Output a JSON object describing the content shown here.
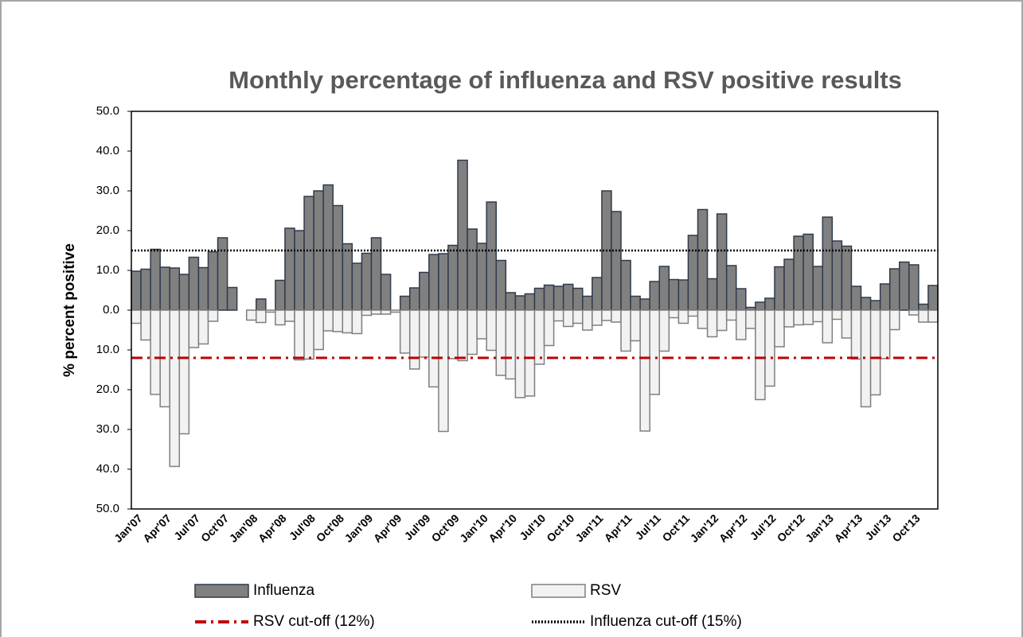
{
  "chart_data": {
    "type": "bar",
    "title": "Monthly percentage of influenza and RSV positive results",
    "y_label": "% percent positive",
    "categories": [
      "Jan'07",
      null,
      null,
      "Apr'07",
      null,
      null,
      "Jul'07",
      null,
      null,
      "Oct'07",
      null,
      null,
      "Jan'08",
      null,
      null,
      "Apr'08",
      null,
      null,
      "Jul'08",
      null,
      null,
      "Oct'08",
      null,
      null,
      "Jan'09",
      null,
      null,
      "Apr'09",
      null,
      null,
      "Jul'09",
      null,
      null,
      "Oct'09",
      null,
      null,
      "Jan'10",
      null,
      null,
      "Apr'10",
      null,
      null,
      "Jul'10",
      null,
      null,
      "Oct'10",
      null,
      null,
      "Jan'11",
      null,
      null,
      "Apr'11",
      null,
      null,
      "Jul'11",
      null,
      null,
      "Oct'11",
      null,
      null,
      "Jan'12",
      null,
      null,
      "Apr'12",
      null,
      null,
      "Jul'12",
      null,
      null,
      "Oct'12",
      null,
      null,
      "Jan'13",
      null,
      null,
      "Apr'13",
      null,
      null,
      "Jul'13",
      null,
      null,
      "Oct'13",
      null,
      null
    ],
    "series": [
      {
        "name": "Influenza",
        "color": "#808080",
        "edge": "#2f3b4c",
        "values": [
          9.8,
          10.3,
          15.3,
          10.8,
          10.6,
          9.0,
          13.3,
          10.7,
          14.7,
          18.2,
          5.7,
          0,
          0,
          2.8,
          0,
          7.5,
          20.6,
          20.0,
          28.6,
          30.0,
          31.5,
          26.3,
          16.7,
          11.8,
          14.3,
          18.2,
          9.0,
          0,
          3.5,
          5.6,
          9.5,
          14.0,
          14.2,
          16.3,
          37.7,
          20.4,
          16.8,
          27.2,
          12.5,
          4.4,
          3.6,
          4.1,
          5.5,
          6.3,
          6.0,
          6.5,
          5.5,
          3.5,
          8.2,
          30.0,
          24.8,
          12.5,
          3.5,
          2.8,
          7.2,
          11.0,
          7.7,
          7.6,
          18.8,
          25.3,
          7.9,
          24.2,
          11.2,
          5.4,
          0.7,
          2.0,
          3.0,
          10.9,
          12.8,
          18.6,
          19.1,
          11.0,
          23.4,
          17.4,
          16.1,
          6.0,
          3.2,
          2.4,
          6.6,
          10.4,
          12.1,
          11.4,
          1.5,
          6.2
        ]
      },
      {
        "name": "RSV",
        "color": "#f2f2f2",
        "edge": "#7f7f7f",
        "values": [
          -3.3,
          -7.5,
          -21.2,
          -24.3,
          -39.3,
          -31.1,
          -9.4,
          -8.5,
          -2.8,
          0,
          0,
          0,
          -2.5,
          -3.1,
          -0.5,
          -3.7,
          -2.8,
          -12.5,
          -12.3,
          -9.9,
          -5.2,
          -5.4,
          -5.7,
          -5.9,
          -1.3,
          -1.0,
          -1.0,
          -0.5,
          -10.8,
          -14.8,
          -11.8,
          -19.3,
          -30.5,
          -12.2,
          -12.7,
          -11.1,
          -7.2,
          -10.1,
          -16.4,
          -17.3,
          -22.0,
          -21.6,
          -13.6,
          -8.9,
          -2.7,
          -4.1,
          -3.3,
          -5.0,
          -3.8,
          -2.6,
          -3.0,
          -10.3,
          -7.7,
          -30.4,
          -21.2,
          -10.3,
          -1.9,
          -3.3,
          -1.5,
          -4.6,
          -6.7,
          -5.1,
          -2.5,
          -7.4,
          -4.6,
          -22.5,
          -19.1,
          -9.2,
          -4.2,
          -3.7,
          -3.6,
          -2.9,
          -8.2,
          -2.3,
          -7.0,
          -12.3,
          -24.3,
          -21.3,
          -12.2,
          -4.9,
          0,
          -1.2,
          -3.0,
          -3.0
        ]
      }
    ],
    "reference_lines": [
      {
        "name": "RSV cut-off (12%)",
        "value": -12,
        "color": "#c00000",
        "style": "dashdot"
      },
      {
        "name": "Influenza cut-off (15%)",
        "value": 15,
        "color": "#000000",
        "style": "dotted"
      }
    ],
    "ylim": [
      -50,
      50
    ],
    "yticks": [
      {
        "value": 50,
        "label": "50.0"
      },
      {
        "value": 40,
        "label": "40.0"
      },
      {
        "value": 30,
        "label": "30.0"
      },
      {
        "value": 20,
        "label": "20.0"
      },
      {
        "value": 10,
        "label": "10.0"
      },
      {
        "value": 0,
        "label": "0.0"
      },
      {
        "value": -10,
        "label": "10.0"
      },
      {
        "value": -20,
        "label": "20.0"
      },
      {
        "value": -30,
        "label": "30.0"
      },
      {
        "value": -40,
        "label": "40.0"
      },
      {
        "value": -50,
        "label": "50.0"
      }
    ]
  }
}
